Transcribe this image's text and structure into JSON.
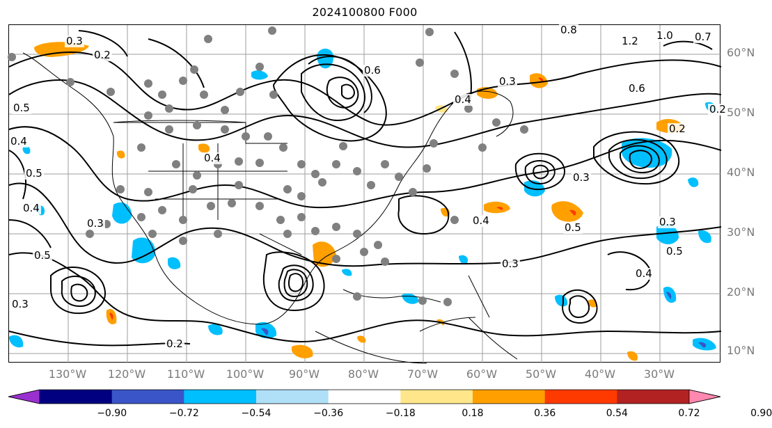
{
  "title": "2024100800 F000",
  "lat_labels": [
    "60°N",
    "50°N",
    "40°N",
    "30°N",
    "20°N",
    "10°N"
  ],
  "lon_labels": [
    "130°W",
    "120°W",
    "110°W",
    "100°W",
    "90°W",
    "80°W",
    "70°W",
    "60°W",
    "50°W",
    "40°W",
    "30°W"
  ],
  "colorbar": {
    "ticks": [
      "−0.90",
      "−0.72",
      "−0.54",
      "−0.36",
      "−0.18",
      "0.18",
      "0.36",
      "0.54",
      "0.72",
      "0.90"
    ],
    "colors": [
      "#9b30d0",
      "#000080",
      "#3a55c8",
      "#00bfff",
      "#b0e0f8",
      "#ffffff",
      "#ffe68a",
      "#ffa000",
      "#ff3a00",
      "#b22222",
      "#ff88b0"
    ]
  },
  "contour_labels": [
    "0.3",
    "0.2",
    "0.8",
    "1.2",
    "1.0",
    "0.7",
    "0.6",
    "0.3",
    "0.5",
    "0.4",
    "0.5",
    "0.4",
    "0.3",
    "0.5",
    "0.4",
    "0.3",
    "0.2",
    "0.3",
    "0.4",
    "0.5",
    "0.4",
    "0.2",
    "0.3",
    "0.5",
    "0.4",
    "0.6",
    "0.2",
    "0.3"
  ],
  "colors": {
    "gridline": "#9e9e9e",
    "contour": "#000000",
    "station_dot": "#808080",
    "pos_light": "#ffe68a",
    "pos_mid": "#ffa000",
    "pos_strong": "#ff3a00",
    "neg_light": "#b0e0f8",
    "neg_mid": "#00bfff",
    "neg_strong": "#3a55c8"
  }
}
